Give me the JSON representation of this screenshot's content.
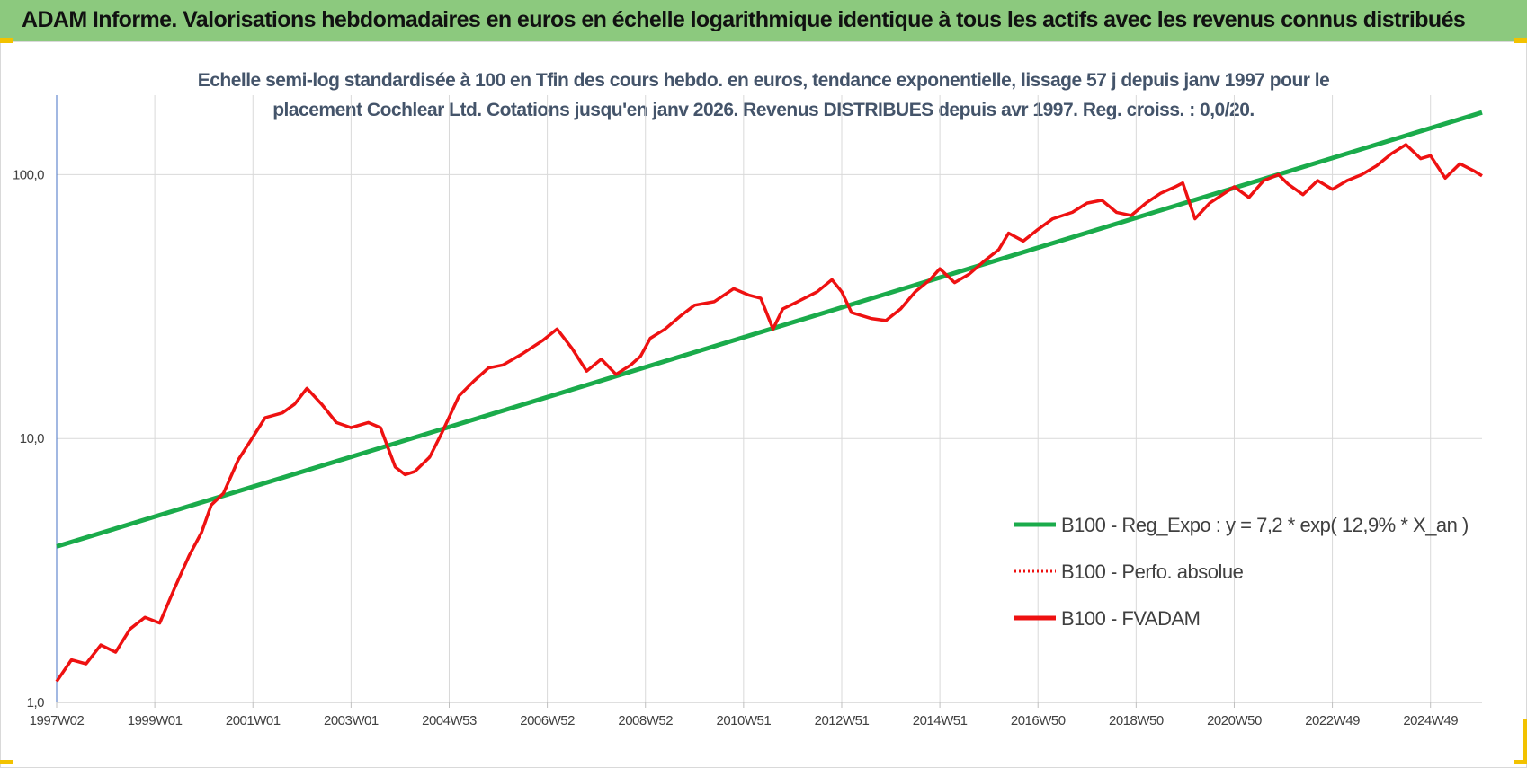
{
  "banner": {
    "title": "ADAM Informe. Valorisations hebdomadaires en euros en échelle logarithmique identique à tous les actifs avec les revenus connus distribués"
  },
  "colors": {
    "banner_bg": "#8cc97e",
    "trend_line": "#1aab4b",
    "fvadam_line": "#ee1111",
    "perfo_line": "#ee1111",
    "grid": "#d9d9d9",
    "corner_marks": "#f2c200"
  },
  "chart_data": {
    "type": "line",
    "title_lines": [
      "Echelle semi-log standardisée à 100 en Tfin des cours hebdo. en euros, tendance exponentielle, lissage 57 j depuis janv 1997 pour le",
      "placement Cochlear Ltd. Cotations jusqu'en janv 2026. Revenus DISTRIBUES depuis avr 1997.  Reg. croiss. : 0,0/20."
    ],
    "y_scale": "log",
    "ylim": [
      1,
      200
    ],
    "y_ticks": [
      {
        "value": 1,
        "label": "1,0"
      },
      {
        "value": 10,
        "label": "10,0"
      },
      {
        "value": 100,
        "label": "100,0"
      }
    ],
    "xlim": [
      1997.0,
      2026.05
    ],
    "x_ticks": [
      {
        "value": 1997.0,
        "label": "1997W02"
      },
      {
        "value": 1999.0,
        "label": "1999W01"
      },
      {
        "value": 2001.0,
        "label": "2001W01"
      },
      {
        "value": 2003.0,
        "label": "2003W01"
      },
      {
        "value": 2005.0,
        "label": "2004W53"
      },
      {
        "value": 2007.0,
        "label": "2006W52"
      },
      {
        "value": 2009.0,
        "label": "2008W52"
      },
      {
        "value": 2011.0,
        "label": "2010W51"
      },
      {
        "value": 2013.0,
        "label": "2012W51"
      },
      {
        "value": 2015.0,
        "label": "2014W51"
      },
      {
        "value": 2017.0,
        "label": "2016W50"
      },
      {
        "value": 2019.0,
        "label": "2018W50"
      },
      {
        "value": 2021.0,
        "label": "2020W50"
      },
      {
        "value": 2023.0,
        "label": "2022W49"
      },
      {
        "value": 2025.0,
        "label": "2024W49"
      }
    ],
    "legend_position": "right",
    "grid": true,
    "series": [
      {
        "name": "B100 - Reg_Expo : y = 7,2 * exp( 12,9% *  X_an )",
        "style": "solid",
        "x": [
          1997.0,
          2026.05
        ],
        "y": [
          3.9,
          172
        ]
      },
      {
        "name": "B100 - Perfo. absolue",
        "style": "dotted",
        "x": [],
        "y": []
      },
      {
        "name": "B100 - FVADAM",
        "style": "solid",
        "x": [
          1997.0,
          1997.3,
          1997.6,
          1997.9,
          1998.2,
          1998.5,
          1998.8,
          1999.1,
          1999.4,
          1999.7,
          1999.95,
          2000.15,
          2000.4,
          2000.7,
          2000.95,
          2001.25,
          2001.6,
          2001.85,
          2002.1,
          2002.4,
          2002.7,
          2003.0,
          2003.35,
          2003.6,
          2003.9,
          2004.1,
          2004.3,
          2004.6,
          2004.85,
          2005.2,
          2005.5,
          2005.8,
          2006.1,
          2006.5,
          2006.9,
          2007.2,
          2007.5,
          2007.8,
          2008.1,
          2008.4,
          2008.7,
          2008.9,
          2009.1,
          2009.4,
          2009.7,
          2010.0,
          2010.4,
          2010.8,
          2011.1,
          2011.35,
          2011.6,
          2011.8,
          2012.1,
          2012.5,
          2012.8,
          2013.0,
          2013.2,
          2013.6,
          2013.9,
          2014.2,
          2014.5,
          2014.8,
          2015.0,
          2015.3,
          2015.6,
          2015.9,
          2016.2,
          2016.4,
          2016.7,
          2017.0,
          2017.3,
          2017.7,
          2018.0,
          2018.3,
          2018.6,
          2018.9,
          2019.2,
          2019.5,
          2019.8,
          2019.95,
          2020.2,
          2020.5,
          2020.8,
          2021.0,
          2021.3,
          2021.6,
          2021.9,
          2022.1,
          2022.4,
          2022.7,
          2023.0,
          2023.3,
          2023.6,
          2023.9,
          2024.2,
          2024.5,
          2024.8,
          2025.0,
          2025.3,
          2025.6,
          2025.9,
          2026.05
        ],
        "y": [
          1.2,
          1.45,
          1.4,
          1.65,
          1.55,
          1.9,
          2.1,
          2.0,
          2.7,
          3.6,
          4.4,
          5.6,
          6.2,
          8.3,
          9.8,
          12.0,
          12.5,
          13.5,
          15.5,
          13.5,
          11.5,
          11.0,
          11.5,
          11.0,
          7.8,
          7.3,
          7.5,
          8.5,
          10.5,
          14.5,
          16.5,
          18.5,
          19.0,
          21.0,
          23.5,
          26.0,
          22.0,
          18.0,
          20.0,
          17.5,
          19.0,
          20.5,
          24.0,
          26.0,
          29.0,
          32.0,
          33.0,
          37.0,
          35.0,
          34.0,
          26.0,
          31.0,
          33.0,
          36.0,
          40.0,
          36.0,
          30.0,
          28.5,
          28.0,
          31.0,
          36.0,
          40.0,
          44.0,
          39.0,
          42.0,
          47.0,
          52.0,
          60.0,
          56.0,
          62.0,
          68.0,
          72.0,
          78.0,
          80.0,
          72.0,
          70.0,
          78.0,
          85.0,
          90.0,
          93.0,
          68.0,
          78.0,
          85.0,
          90.0,
          82.0,
          95.0,
          100.0,
          92.0,
          84.0,
          95.0,
          88.0,
          95.0,
          100.0,
          108.0,
          120.0,
          130.0,
          115.0,
          118.0,
          97.0,
          110.0,
          103.0,
          99.0
        ]
      }
    ]
  }
}
